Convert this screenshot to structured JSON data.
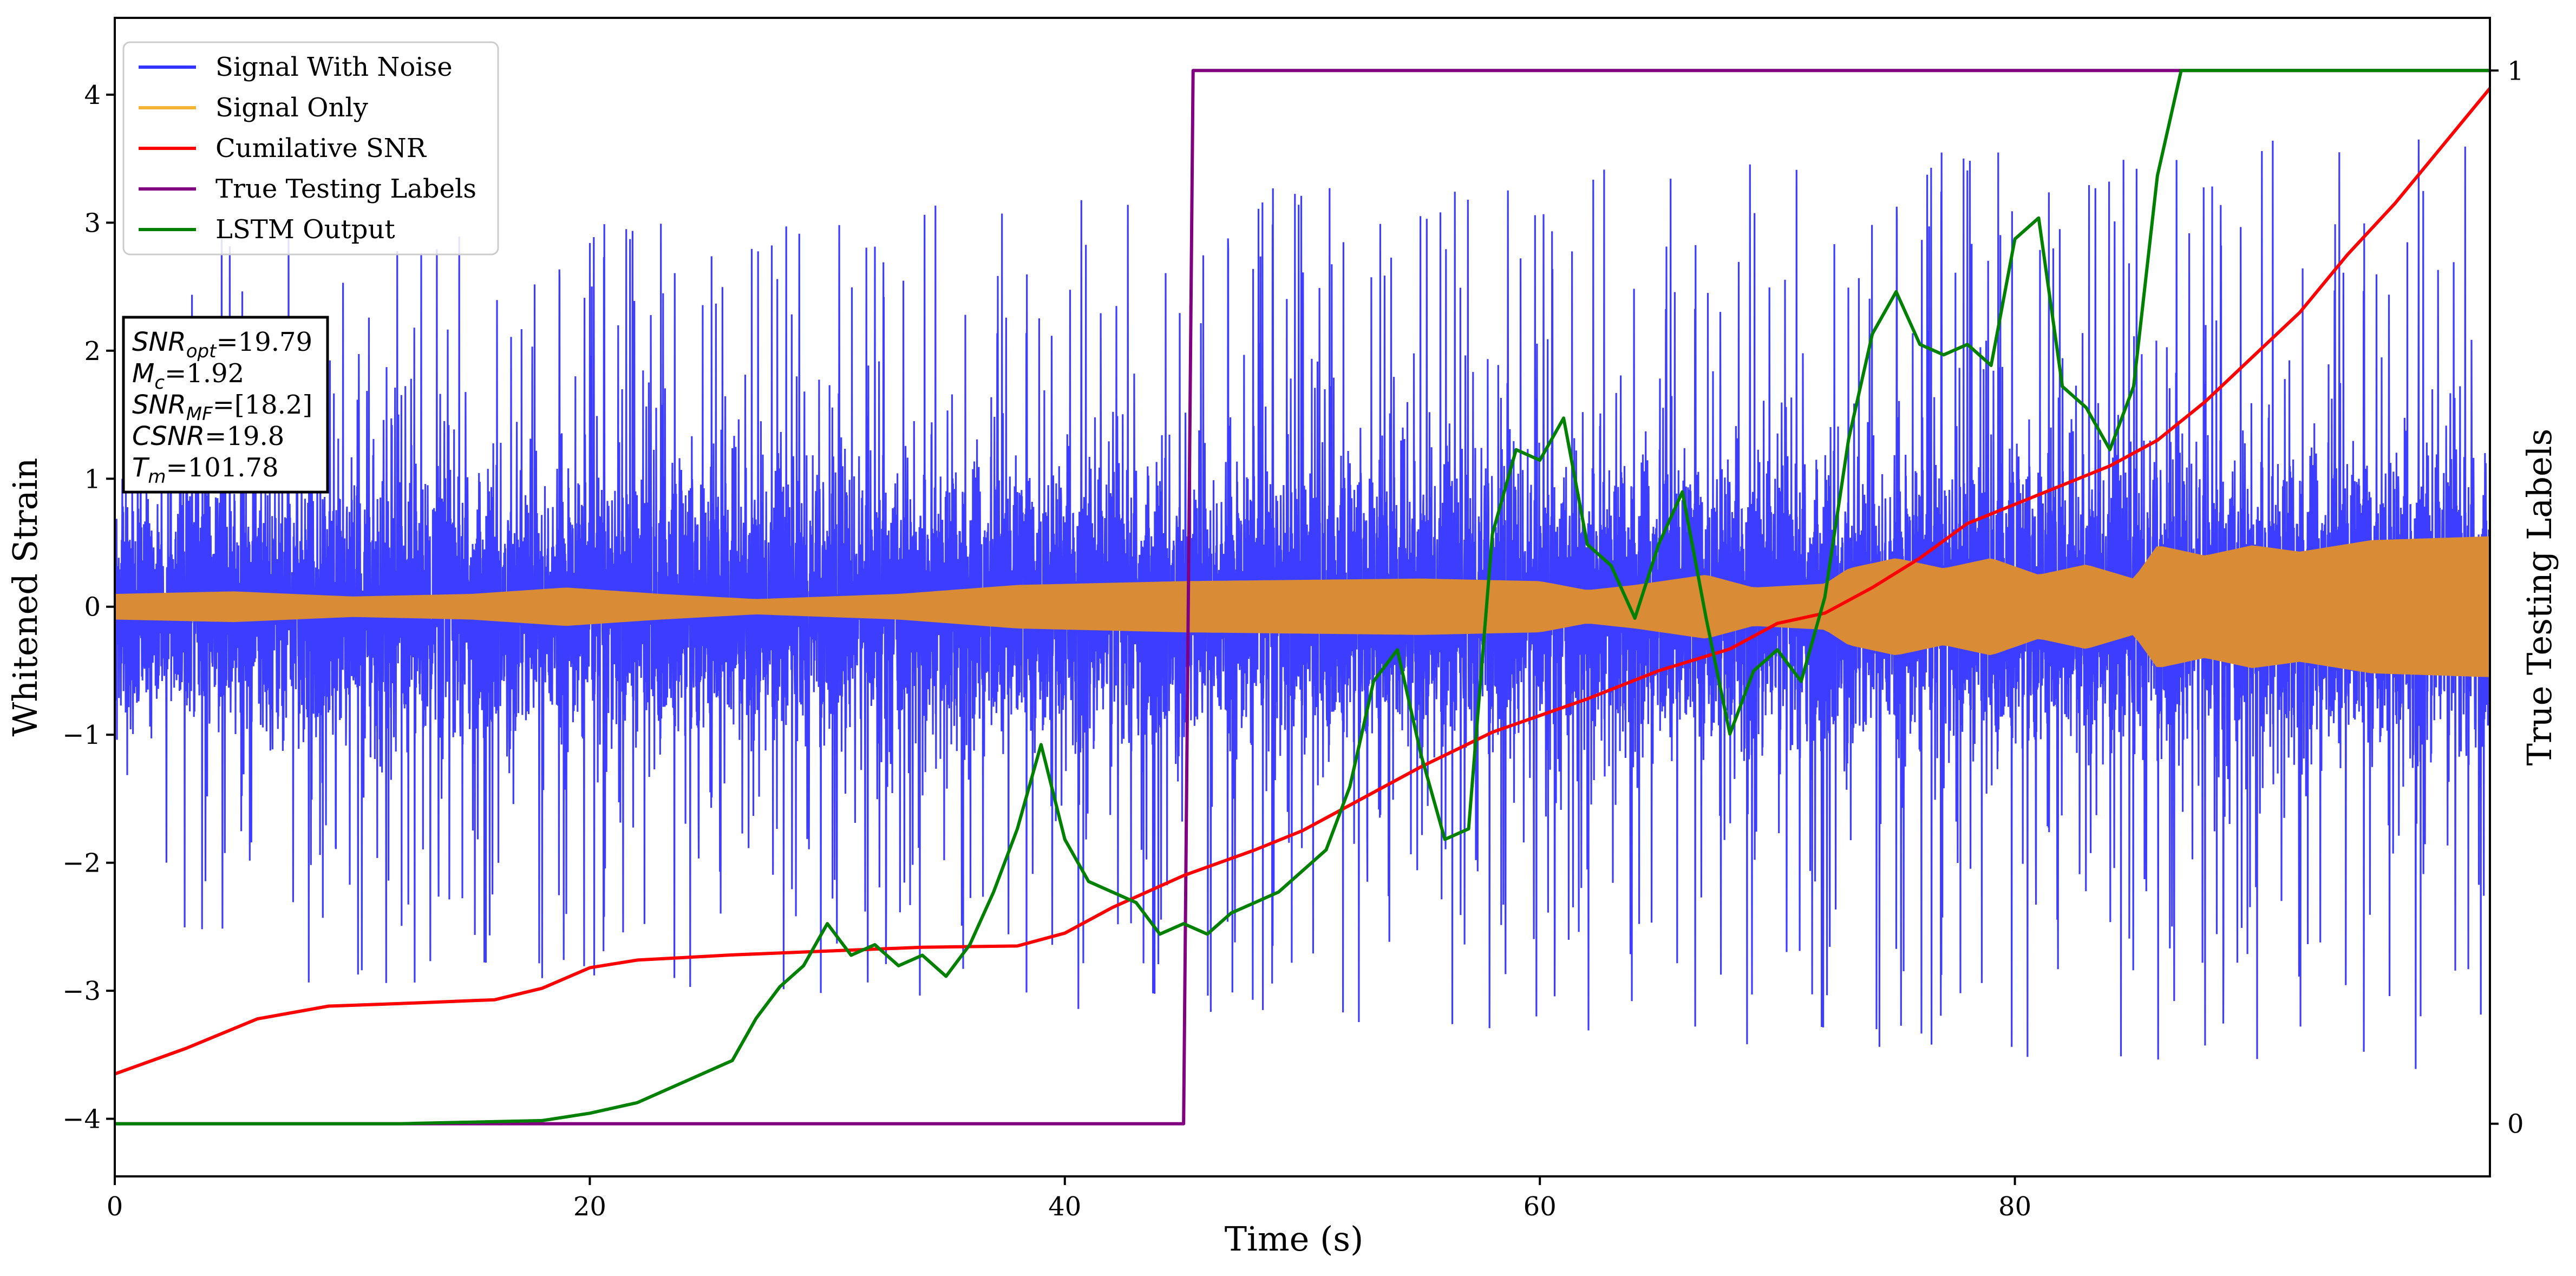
{
  "chart_data": {
    "type": "line",
    "x_axis": {
      "label": "Time (s)",
      "range": [
        0,
        100
      ],
      "ticks": [
        0,
        20,
        40,
        60,
        80
      ],
      "tick_labels": [
        "0",
        "20",
        "40",
        "60",
        "80"
      ]
    },
    "y_axis_left": {
      "label": "Whitened Strain",
      "range": [
        -4.45,
        4.6
      ],
      "ticks": [
        -4,
        -3,
        -2,
        -1,
        0,
        1,
        2,
        3,
        4
      ],
      "tick_labels": [
        "−4",
        "−3",
        "−2",
        "−1",
        "0",
        "1",
        "2",
        "3",
        "4"
      ]
    },
    "y_axis_right": {
      "label": "True Testing Labels",
      "range": [
        -0.05,
        1.05
      ],
      "ticks": [
        0,
        1
      ],
      "tick_labels": [
        "0",
        "1"
      ]
    },
    "grid": false,
    "legend": {
      "placement": "upper-left",
      "entries": [
        {
          "name": "Signal With Noise",
          "color": "#3333ff"
        },
        {
          "name": "Signal Only",
          "color": "#f5b335"
        },
        {
          "name": "Cumilative SNR",
          "color": "#ff0000"
        },
        {
          "name": "True Testing Labels",
          "color": "#800080"
        },
        {
          "name": "LSTM Output",
          "color": "#008000"
        }
      ]
    },
    "annotation": {
      "lines": [
        {
          "label": "SNR",
          "sub": "opt",
          "value": "=19.79"
        },
        {
          "label": "M",
          "sub": "c",
          "value": "=1.92"
        },
        {
          "label": "SNR",
          "sub": "MF",
          "value": "=[18.2]"
        },
        {
          "label": "CSNR",
          "sub": "",
          "value": "=19.8"
        },
        {
          "label": "T",
          "sub": "m",
          "value": "=101.78"
        }
      ]
    },
    "series": [
      {
        "name": "Signal With Noise",
        "axis": "left",
        "color": "#3333ff",
        "core_band": [
          [
            0,
            0.55
          ],
          [
            100,
            0.65
          ]
        ],
        "spike_extent": [
          [
            0,
            2.9
          ],
          [
            20,
            3.0
          ],
          [
            40,
            3.2
          ],
          [
            60,
            3.4
          ],
          [
            80,
            3.6
          ],
          [
            100,
            3.7
          ]
        ]
      },
      {
        "name": "Signal Only",
        "axis": "left",
        "color": "#d98c35",
        "envelope": [
          [
            0,
            0.1
          ],
          [
            5,
            0.12
          ],
          [
            10,
            0.08
          ],
          [
            15,
            0.1
          ],
          [
            19,
            0.15
          ],
          [
            23,
            0.1
          ],
          [
            27,
            0.06
          ],
          [
            33,
            0.1
          ],
          [
            38,
            0.17
          ],
          [
            45,
            0.2
          ],
          [
            55,
            0.22
          ],
          [
            60,
            0.2
          ],
          [
            62,
            0.13
          ],
          [
            64,
            0.17
          ],
          [
            67,
            0.25
          ],
          [
            69,
            0.15
          ],
          [
            72,
            0.18
          ],
          [
            73,
            0.3
          ],
          [
            75,
            0.38
          ],
          [
            77,
            0.3
          ],
          [
            79,
            0.38
          ],
          [
            81,
            0.25
          ],
          [
            83,
            0.33
          ],
          [
            85,
            0.22
          ],
          [
            86,
            0.48
          ],
          [
            88,
            0.4
          ],
          [
            90,
            0.48
          ],
          [
            92,
            0.43
          ],
          [
            95,
            0.52
          ],
          [
            100,
            0.55
          ]
        ]
      },
      {
        "name": "Cumilative SNR",
        "axis": "left",
        "color": "#ff0000",
        "points": [
          [
            0,
            -3.65
          ],
          [
            3,
            -3.45
          ],
          [
            6,
            -3.22
          ],
          [
            9,
            -3.12
          ],
          [
            12,
            -3.1
          ],
          [
            16,
            -3.07
          ],
          [
            18,
            -2.98
          ],
          [
            20,
            -2.82
          ],
          [
            22,
            -2.76
          ],
          [
            26,
            -2.72
          ],
          [
            30,
            -2.69
          ],
          [
            34,
            -2.66
          ],
          [
            38,
            -2.65
          ],
          [
            40,
            -2.55
          ],
          [
            42,
            -2.35
          ],
          [
            45,
            -2.1
          ],
          [
            48,
            -1.9
          ],
          [
            50,
            -1.75
          ],
          [
            52,
            -1.55
          ],
          [
            55,
            -1.25
          ],
          [
            58,
            -0.98
          ],
          [
            62,
            -0.72
          ],
          [
            65,
            -0.5
          ],
          [
            68,
            -0.33
          ],
          [
            70,
            -0.13
          ],
          [
            72,
            -0.05
          ],
          [
            74,
            0.15
          ],
          [
            76,
            0.38
          ],
          [
            78,
            0.65
          ],
          [
            80,
            0.8
          ],
          [
            82,
            0.95
          ],
          [
            84,
            1.1
          ],
          [
            86,
            1.3
          ],
          [
            88,
            1.6
          ],
          [
            90,
            1.95
          ],
          [
            92,
            2.3
          ],
          [
            94,
            2.75
          ],
          [
            96,
            3.15
          ],
          [
            98,
            3.6
          ],
          [
            100,
            4.05
          ]
        ]
      },
      {
        "name": "True Testing Labels",
        "axis": "right",
        "color": "#800080",
        "points": [
          [
            0,
            0
          ],
          [
            45,
            0
          ],
          [
            45.4,
            1
          ],
          [
            100,
            1
          ]
        ]
      },
      {
        "name": "LSTM Output",
        "axis": "right",
        "color": "#008000",
        "points": [
          [
            0,
            0
          ],
          [
            12,
            0
          ],
          [
            18,
            0.003
          ],
          [
            20,
            0.01
          ],
          [
            22,
            0.02
          ],
          [
            24,
            0.04
          ],
          [
            26,
            0.06
          ],
          [
            27,
            0.1
          ],
          [
            28,
            0.13
          ],
          [
            29,
            0.15
          ],
          [
            30,
            0.19
          ],
          [
            31,
            0.16
          ],
          [
            32,
            0.17
          ],
          [
            33,
            0.15
          ],
          [
            34,
            0.16
          ],
          [
            35,
            0.14
          ],
          [
            36,
            0.17
          ],
          [
            37,
            0.22
          ],
          [
            38,
            0.28
          ],
          [
            39,
            0.36
          ],
          [
            40,
            0.27
          ],
          [
            41,
            0.23
          ],
          [
            42,
            0.22
          ],
          [
            43,
            0.21
          ],
          [
            44,
            0.18
          ],
          [
            45,
            0.19
          ],
          [
            46,
            0.18
          ],
          [
            47,
            0.2
          ],
          [
            48,
            0.21
          ],
          [
            49,
            0.22
          ],
          [
            50,
            0.24
          ],
          [
            51,
            0.26
          ],
          [
            52,
            0.32
          ],
          [
            53,
            0.42
          ],
          [
            54,
            0.45
          ],
          [
            55,
            0.35
          ],
          [
            56,
            0.27
          ],
          [
            57,
            0.28
          ],
          [
            58,
            0.56
          ],
          [
            59,
            0.64
          ],
          [
            60,
            0.63
          ],
          [
            61,
            0.67
          ],
          [
            62,
            0.55
          ],
          [
            63,
            0.53
          ],
          [
            64,
            0.48
          ],
          [
            65,
            0.55
          ],
          [
            66,
            0.6
          ],
          [
            67,
            0.48
          ],
          [
            68,
            0.37
          ],
          [
            69,
            0.43
          ],
          [
            70,
            0.45
          ],
          [
            71,
            0.42
          ],
          [
            72,
            0.5
          ],
          [
            73,
            0.65
          ],
          [
            74,
            0.75
          ],
          [
            75,
            0.79
          ],
          [
            76,
            0.74
          ],
          [
            77,
            0.73
          ],
          [
            78,
            0.74
          ],
          [
            79,
            0.72
          ],
          [
            80,
            0.84
          ],
          [
            81,
            0.86
          ],
          [
            82,
            0.7
          ],
          [
            83,
            0.68
          ],
          [
            84,
            0.64
          ],
          [
            85,
            0.7
          ],
          [
            86,
            0.9
          ],
          [
            87,
            1
          ],
          [
            88,
            1
          ],
          [
            100,
            1
          ]
        ]
      }
    ]
  }
}
